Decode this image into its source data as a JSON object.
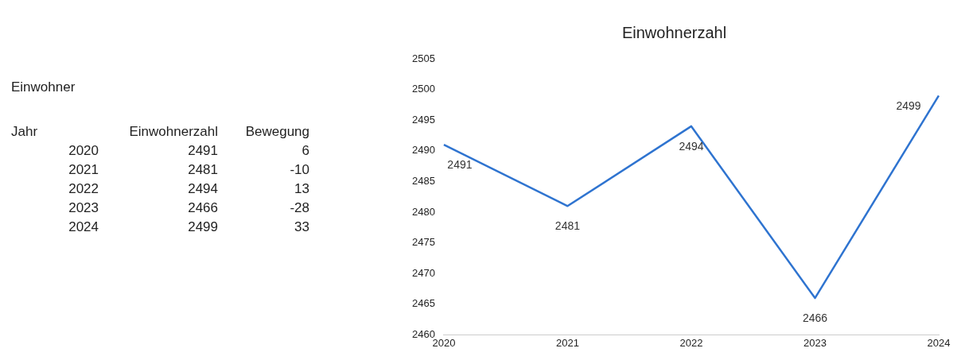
{
  "chart_data": {
    "type": "line",
    "title": "Einwohnerzahl",
    "categories": [
      "2020",
      "2021",
      "2022",
      "2023",
      "2024"
    ],
    "series": [
      {
        "color": "#2f74d0",
        "values": [
          2491,
          2481,
          2494,
          2466,
          2499
        ]
      }
    ],
    "ylim": [
      2460,
      2505
    ],
    "yticks": [
      2460,
      2465,
      2470,
      2475,
      2480,
      2485,
      2490,
      2495,
      2500,
      2505
    ],
    "grid": false,
    "legend": false,
    "marker": "none",
    "line_style": "solid",
    "data_labels": true,
    "annotations": [
      "Einwohner",
      "Jahr",
      "Einwohnerzahl",
      "Bewegung",
      "2491",
      "6",
      "2481",
      "-10",
      "2494",
      "13",
      "2466",
      "-28",
      "2499",
      "33"
    ]
  }
}
